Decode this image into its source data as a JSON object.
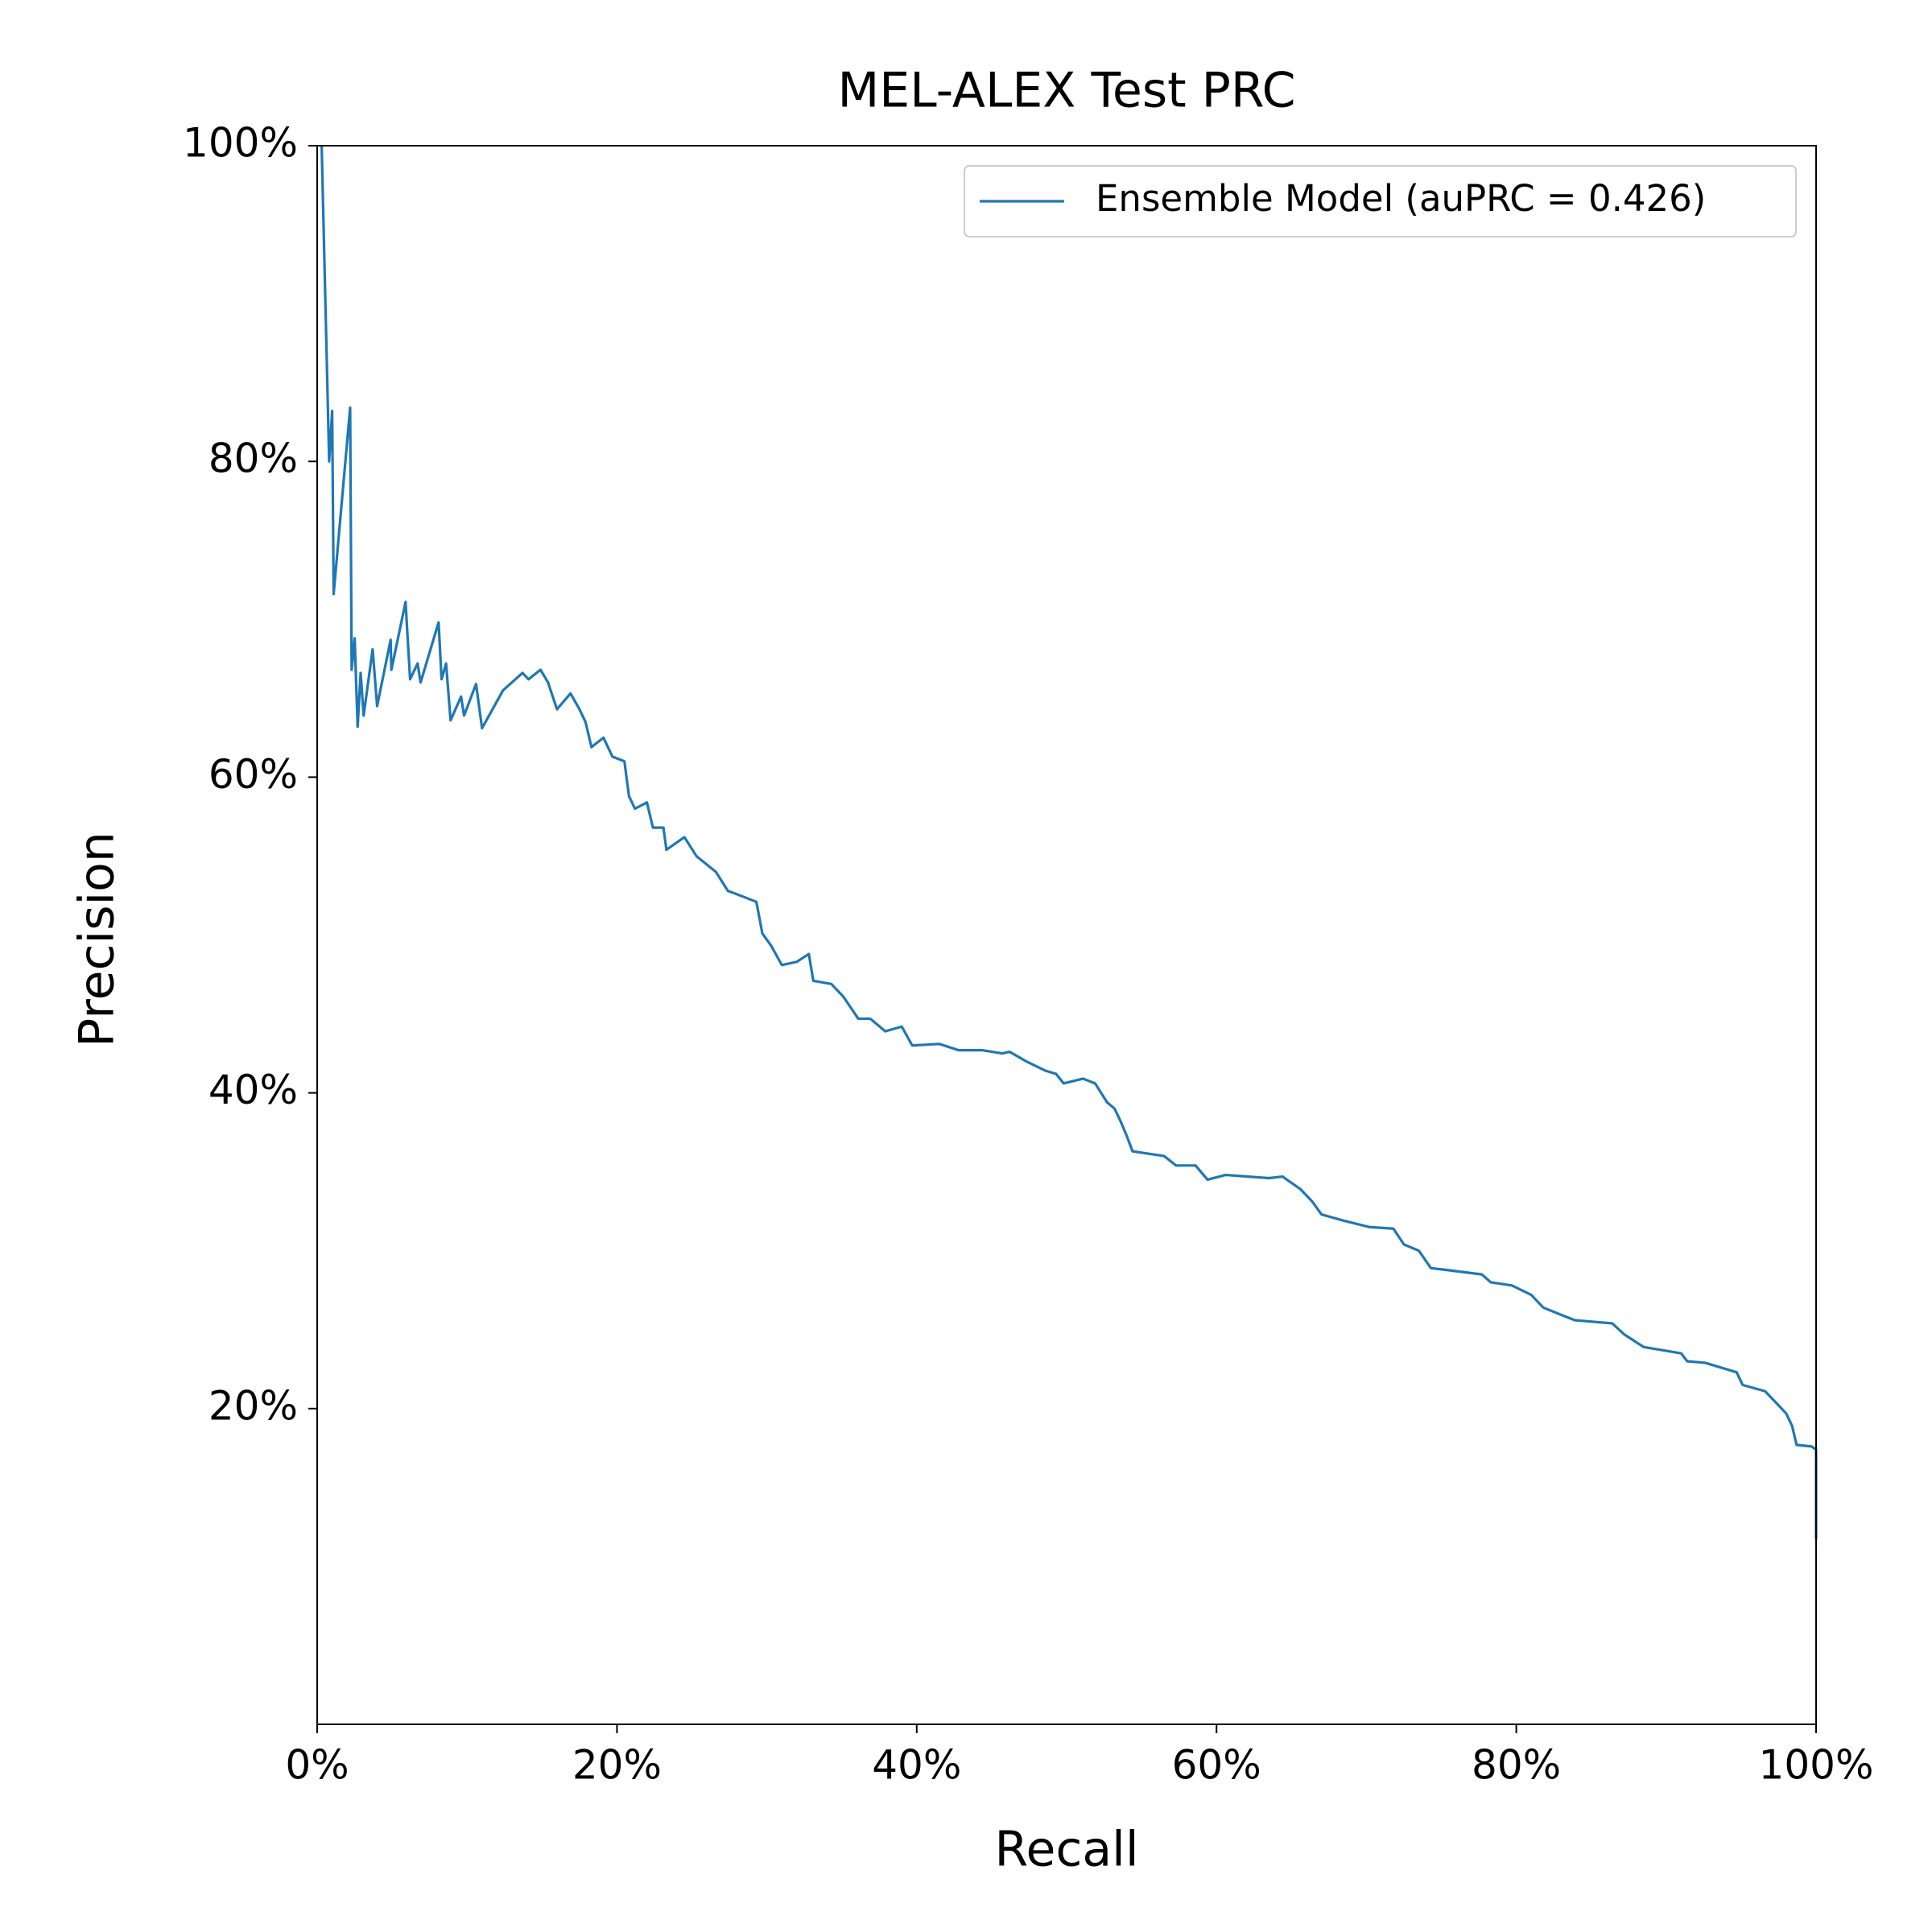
{
  "chart_data": {
    "type": "line",
    "title": "MEL-ALEX Test PRC",
    "xlabel": "Recall",
    "ylabel": "Precision",
    "xlim": [
      0,
      100
    ],
    "ylim": [
      0,
      100
    ],
    "xticks": [
      {
        "value": 0,
        "label": "0%"
      },
      {
        "value": 20,
        "label": "20%"
      },
      {
        "value": 40,
        "label": "40%"
      },
      {
        "value": 60,
        "label": "60%"
      },
      {
        "value": 80,
        "label": "80%"
      },
      {
        "value": 100,
        "label": "100%"
      }
    ],
    "yticks": [
      {
        "value": 20,
        "label": "20%"
      },
      {
        "value": 40,
        "label": "40%"
      },
      {
        "value": 60,
        "label": "60%"
      },
      {
        "value": 80,
        "label": "80%"
      },
      {
        "value": 100,
        "label": "100%"
      }
    ],
    "grid": false,
    "legend": "upper right",
    "x": [
      0.3,
      0.8,
      1.0,
      1.1,
      2.2,
      2.3,
      2.5,
      2.7,
      2.9,
      3.1,
      3.7,
      4.0,
      4.9,
      4.95,
      5.9,
      6.0,
      6.2,
      6.7,
      6.9,
      8.1,
      8.3,
      8.6,
      8.9,
      9.6,
      9.8,
      10.6,
      11.0,
      12.4,
      13.7,
      14.1,
      14.9,
      15.4,
      16.0,
      16.9,
      17.5,
      17.9,
      18.3,
      19.1,
      19.7,
      20.5,
      20.8,
      21.2,
      22.0,
      22.4,
      23.1,
      23.3,
      24.5,
      25.3,
      26.6,
      27.4,
      28.5,
      29.3,
      29.7,
      30.3,
      31.0,
      32.0,
      32.8,
      33.1,
      34.3,
      35.1,
      36.1,
      36.9,
      37.9,
      39.0,
      39.7,
      41.5,
      42.8,
      44.4,
      45.7,
      46.2,
      47.3,
      48.6,
      49.3,
      49.8,
      51.1,
      51.9,
      52.7,
      53.2,
      53.6,
      54.0,
      54.4,
      56.5,
      57.3,
      58.6,
      59.4,
      60.6,
      63.5,
      64.4,
      65.6,
      66.4,
      67.0,
      68.5,
      70.2,
      71.8,
      72.5,
      73.5,
      74.3,
      75.2,
      77.7,
      78.3,
      79.7,
      81.0,
      81.8,
      83.1,
      83.9,
      86.4,
      87.2,
      88.5,
      91.0,
      91.4,
      92.6,
      94.7,
      95.1,
      96.6,
      97.2,
      98.0,
      98.4,
      98.7,
      99.7,
      100,
      100
    ],
    "series": [
      {
        "name": "Ensemble Model (auPRC = 0.426)",
        "color": "#1f77b4",
        "values": [
          100,
          80,
          83.2,
          71.6,
          83.4,
          66.8,
          68.8,
          63.2,
          66.6,
          63.9,
          68.1,
          64.5,
          68.7,
          66.8,
          71.1,
          69.4,
          66.2,
          67.2,
          66.0,
          69.8,
          66.2,
          67.2,
          63.6,
          65.1,
          63.9,
          65.9,
          63.1,
          65.5,
          66.6,
          66.2,
          66.8,
          66.0,
          64.3,
          65.3,
          64.3,
          63.5,
          61.9,
          62.5,
          61.3,
          61.0,
          58.8,
          58.0,
          58.4,
          56.8,
          56.8,
          55.4,
          56.2,
          55.0,
          54.0,
          52.8,
          52.4,
          52.1,
          50.1,
          49.3,
          48.1,
          48.3,
          48.8,
          47.1,
          46.9,
          46.1,
          44.7,
          44.7,
          43.9,
          44.2,
          43.0,
          43.1,
          42.7,
          42.7,
          42.5,
          42.6,
          42.0,
          41.4,
          41.2,
          40.6,
          40.9,
          40.6,
          39.4,
          39.0,
          38.2,
          37.3,
          36.3,
          36.0,
          35.4,
          35.4,
          34.5,
          34.8,
          34.6,
          34.7,
          33.9,
          33.1,
          32.3,
          31.9,
          31.5,
          31.4,
          30.4,
          30.0,
          28.9,
          28.8,
          28.5,
          28.0,
          27.8,
          27.2,
          26.4,
          25.9,
          25.6,
          25.4,
          24.7,
          23.9,
          23.5,
          23.0,
          22.9,
          22.3,
          21.5,
          21.1,
          20.5,
          19.7,
          18.9,
          17.7,
          17.6,
          17.4,
          11.7
        ]
      }
    ]
  }
}
